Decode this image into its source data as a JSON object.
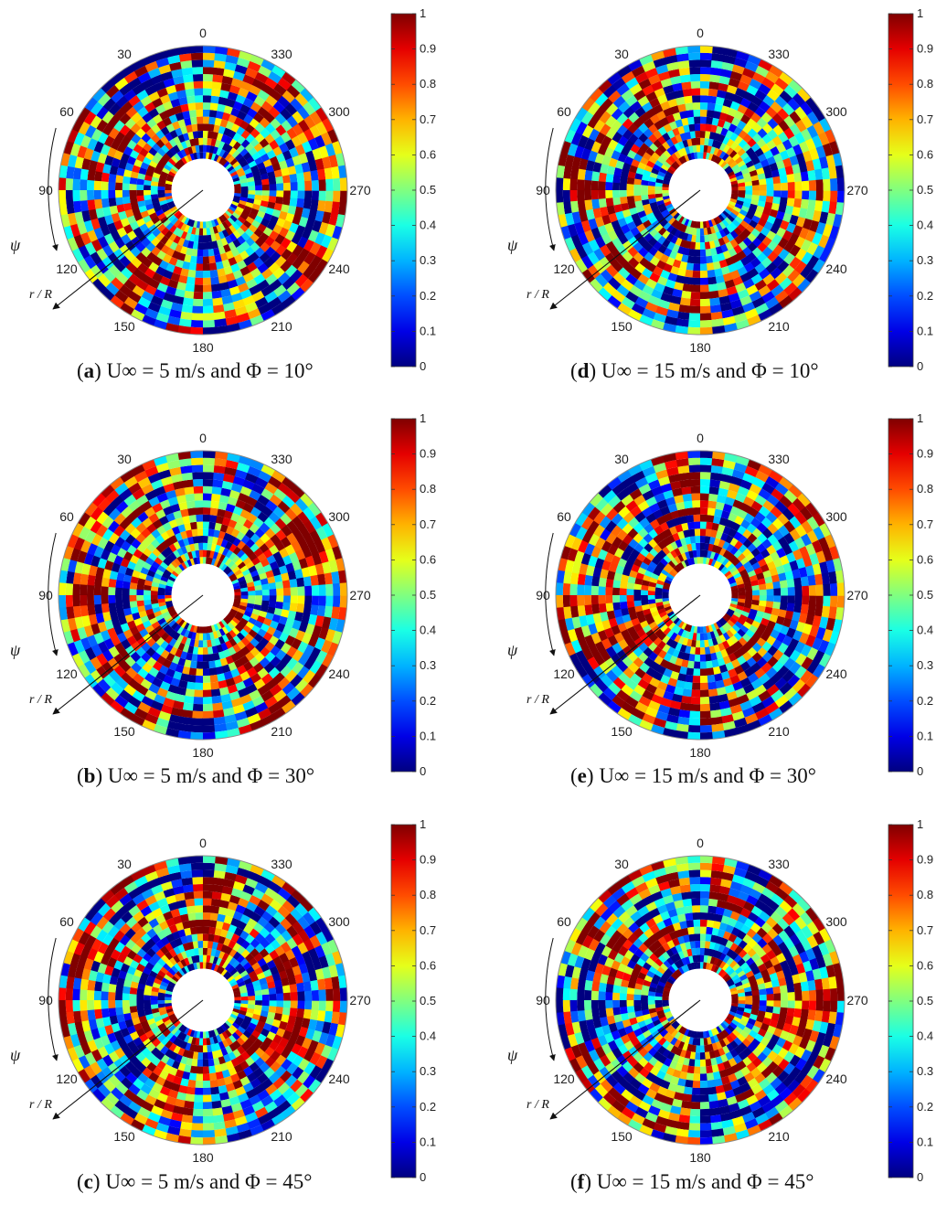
{
  "chart_data": [
    {
      "id": "a",
      "type": "heatmap",
      "caption": {
        "letter": "a",
        "text": "U∞ = 5 m/s and Φ = 10°"
      },
      "angle_labels": [
        "0",
        "30",
        "60",
        "90",
        "120",
        "150",
        "180",
        "210",
        "240",
        "270",
        "300",
        "330"
      ],
      "azimuth_symbol": "ψ",
      "radius_label": "r / R",
      "colorbar": {
        "ticks": [
          "0",
          "0.1",
          "0.2",
          "0.3",
          "0.4",
          "0.5",
          "0.6",
          "0.7",
          "0.8",
          "0.9",
          "1"
        ],
        "range": [
          0,
          1
        ],
        "colormap": "jet"
      },
      "seed": 11
    },
    {
      "id": "d",
      "type": "heatmap",
      "caption": {
        "letter": "d",
        "text": "U∞ = 15 m/s and Φ = 10°"
      },
      "angle_labels": [
        "0",
        "30",
        "60",
        "90",
        "120",
        "150",
        "180",
        "210",
        "240",
        "270",
        "300",
        "330"
      ],
      "azimuth_symbol": "ψ",
      "radius_label": "r / R",
      "colorbar": {
        "ticks": [
          "0",
          "0.1",
          "0.2",
          "0.3",
          "0.4",
          "0.5",
          "0.6",
          "0.7",
          "0.8",
          "0.9",
          "1"
        ],
        "range": [
          0,
          1
        ],
        "colormap": "jet"
      },
      "seed": 23
    },
    {
      "id": "b",
      "type": "heatmap",
      "caption": {
        "letter": "b",
        "text": "U∞ = 5 m/s and Φ = 30°"
      },
      "angle_labels": [
        "0",
        "30",
        "60",
        "90",
        "120",
        "150",
        "180",
        "210",
        "240",
        "270",
        "300",
        "330"
      ],
      "azimuth_symbol": "ψ",
      "radius_label": "r / R",
      "colorbar": {
        "ticks": [
          "0",
          "0.1",
          "0.2",
          "0.3",
          "0.4",
          "0.5",
          "0.6",
          "0.7",
          "0.8",
          "0.9",
          "1"
        ],
        "range": [
          0,
          1
        ],
        "colormap": "jet"
      },
      "seed": 37
    },
    {
      "id": "e",
      "type": "heatmap",
      "caption": {
        "letter": "e",
        "text": "U∞ = 15 m/s and Φ = 30°"
      },
      "angle_labels": [
        "0",
        "30",
        "60",
        "90",
        "120",
        "150",
        "180",
        "210",
        "240",
        "270",
        "300",
        "330"
      ],
      "azimuth_symbol": "ψ",
      "radius_label": "r / R",
      "colorbar": {
        "ticks": [
          "0",
          "0.1",
          "0.2",
          "0.3",
          "0.4",
          "0.5",
          "0.6",
          "0.7",
          "0.8",
          "0.9",
          "1"
        ],
        "range": [
          0,
          1
        ],
        "colormap": "jet"
      },
      "seed": 41
    },
    {
      "id": "c",
      "type": "heatmap",
      "caption": {
        "letter": "c",
        "text": "U∞ = 5 m/s and Φ = 45°"
      },
      "angle_labels": [
        "0",
        "30",
        "60",
        "90",
        "120",
        "150",
        "180",
        "210",
        "240",
        "270",
        "300",
        "330"
      ],
      "azimuth_symbol": "ψ",
      "radius_label": "r / R",
      "colorbar": {
        "ticks": [
          "0",
          "0.1",
          "0.2",
          "0.3",
          "0.4",
          "0.5",
          "0.6",
          "0.7",
          "0.8",
          "0.9",
          "1"
        ],
        "range": [
          0,
          1
        ],
        "colormap": "jet"
      },
      "seed": 53
    },
    {
      "id": "f",
      "type": "heatmap",
      "caption": {
        "letter": "f",
        "text": "U∞ = 15 m/s and Φ = 45°"
      },
      "angle_labels": [
        "0",
        "30",
        "60",
        "90",
        "120",
        "150",
        "180",
        "210",
        "240",
        "270",
        "300",
        "330"
      ],
      "azimuth_symbol": "ψ",
      "radius_label": "r / R",
      "colorbar": {
        "ticks": [
          "0",
          "0.1",
          "0.2",
          "0.3",
          "0.4",
          "0.5",
          "0.6",
          "0.7",
          "0.8",
          "0.9",
          "1"
        ],
        "range": [
          0,
          1
        ],
        "colormap": "jet"
      },
      "seed": 67
    }
  ]
}
